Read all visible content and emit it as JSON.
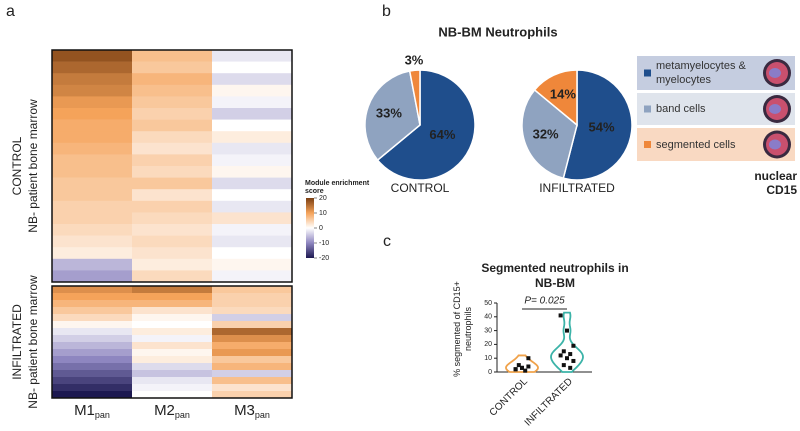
{
  "chart_data": [
    {
      "type": "heatmap",
      "panel": "a",
      "categories": [
        "M1",
        "M2",
        "M3"
      ],
      "subscript": "pan",
      "groups": [
        {
          "name": "CONTROL",
          "label": "NB- patient bone marrow",
          "values": [
            [
              18,
              7,
              -2
            ],
            [
              16,
              6,
              0
            ],
            [
              14,
              8,
              -3
            ],
            [
              13,
              7,
              1
            ],
            [
              11,
              6,
              -1
            ],
            [
              10,
              5,
              -4
            ],
            [
              9,
              6,
              0
            ],
            [
              9,
              4,
              2
            ],
            [
              8,
              3,
              -2
            ],
            [
              7,
              5,
              -1
            ],
            [
              7,
              4,
              1
            ],
            [
              6,
              6,
              -3
            ],
            [
              6,
              3,
              0
            ],
            [
              5,
              5,
              -2
            ],
            [
              5,
              4,
              3
            ],
            [
              4,
              3,
              -1
            ],
            [
              3,
              4,
              -2
            ],
            [
              2,
              3,
              0
            ],
            [
              -6,
              2,
              1
            ],
            [
              -8,
              4,
              -1
            ]
          ]
        },
        {
          "name": "INFILTRATED",
          "label": "NB- patient bone marrow",
          "values": [
            [
              12,
              14,
              6
            ],
            [
              10,
              10,
              5
            ],
            [
              8,
              8,
              5
            ],
            [
              6,
              3,
              4
            ],
            [
              4,
              1,
              -4
            ],
            [
              1,
              0,
              5
            ],
            [
              -2,
              2,
              16
            ],
            [
              -4,
              -1,
              12
            ],
            [
              -6,
              3,
              9
            ],
            [
              -8,
              1,
              11
            ],
            [
              -10,
              2,
              6
            ],
            [
              -12,
              -3,
              8
            ],
            [
              -14,
              -5,
              -4
            ],
            [
              -16,
              -2,
              7
            ],
            [
              -18,
              -1,
              3
            ],
            [
              -20,
              0,
              5
            ]
          ]
        }
      ],
      "colorbar_title": "Module enrichment score",
      "clim": [
        -20,
        20
      ],
      "cticks": [
        20,
        10,
        0,
        -10,
        -20
      ]
    },
    {
      "type": "pie",
      "panel": "b",
      "title": "NB-BM Neutrophils",
      "categories": [
        "metamyelocytes & myelocytes",
        "band cells",
        "segmented cells"
      ],
      "colors": [
        "#1f4e8c",
        "#8fa3c0",
        "#ef873a"
      ],
      "pies": [
        {
          "name": "CONTROL",
          "values": [
            64,
            33,
            3
          ],
          "value_labels": [
            "64%",
            "33%",
            "3%"
          ]
        },
        {
          "name": "INFILTRATED",
          "values": [
            54,
            32,
            14
          ],
          "value_labels": [
            "54%",
            "32%",
            "14%"
          ]
        }
      ],
      "stain_labels": [
        "nuclear",
        "CD15"
      ]
    },
    {
      "type": "violin",
      "panel": "c",
      "title": "Segmented neutrophils in NB-BM",
      "ylabel": "% segmented of CD15+ neutrophils",
      "categories": [
        "CONTROL",
        "INFILTRATED"
      ],
      "colors": [
        "#f0a24a",
        "#3bb3a8"
      ],
      "points": [
        [
          2,
          3,
          4,
          5,
          1,
          2,
          3,
          10
        ],
        [
          41,
          30,
          19,
          15,
          13,
          12,
          10,
          8,
          5,
          3
        ]
      ],
      "ylim": [
        0,
        50
      ],
      "yticks": [
        0,
        10,
        20,
        30,
        40,
        50
      ],
      "annotation": "P= 0.025"
    }
  ]
}
